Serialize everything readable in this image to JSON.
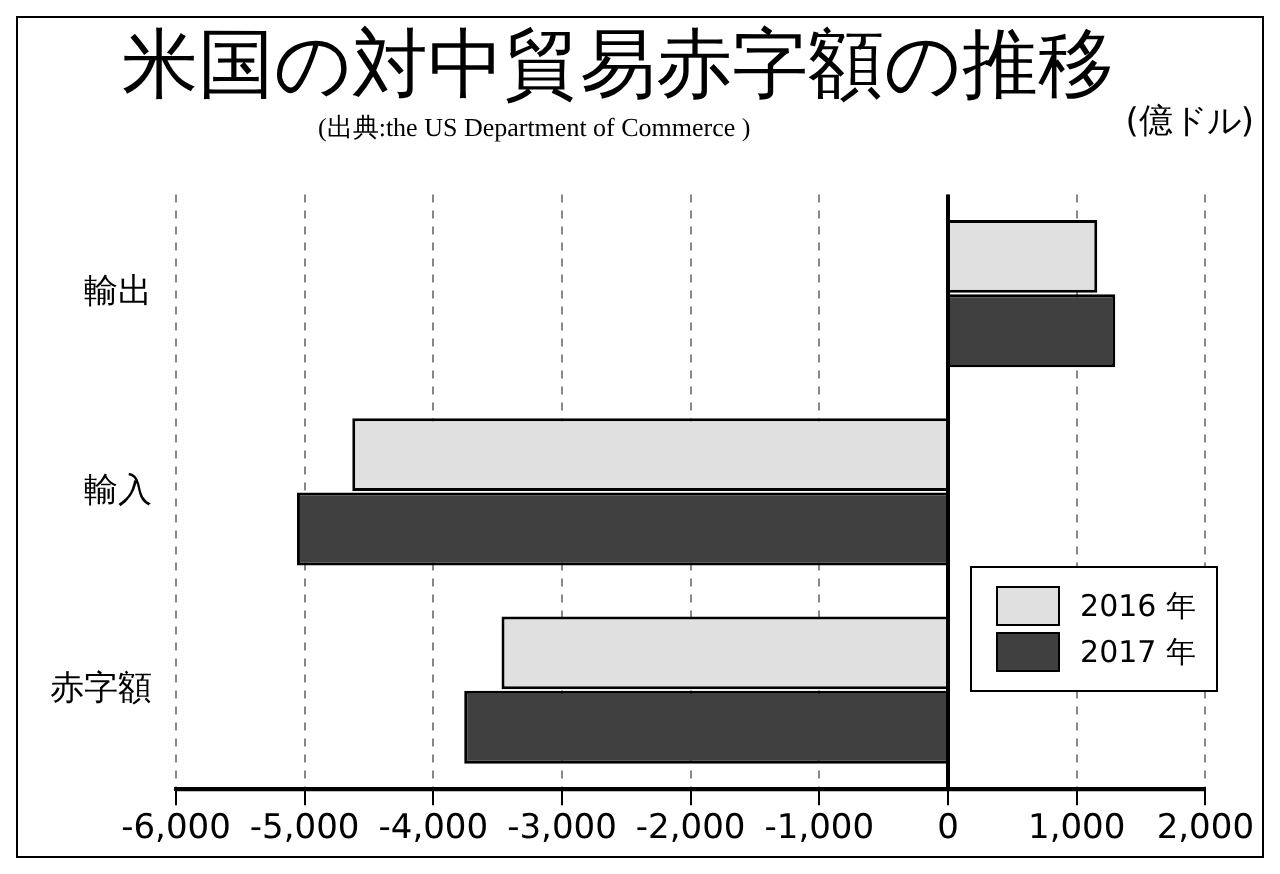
{
  "chart_data": {
    "type": "bar",
    "orientation": "horizontal",
    "title": "米国の対中貿易赤字額の推移",
    "subtitle": "(出典:the US Department of Commerce )",
    "annotations": [
      "(億ドル)"
    ],
    "categories": [
      "輸出",
      "輸入",
      "赤字額"
    ],
    "series": [
      {
        "name": "2016 年",
        "color": "#e0e0e0",
        "values": [
          1160,
          -4630,
          -3470
        ]
      },
      {
        "name": "2017 年",
        "color": "#404040",
        "values": [
          1300,
          -5060,
          -3760
        ]
      }
    ],
    "xlim": [
      -6000,
      2000
    ],
    "xticks": [
      {
        "value": -6000,
        "label": "-6,000"
      },
      {
        "value": -5000,
        "label": "-5,000"
      },
      {
        "value": -4000,
        "label": "-4,000"
      },
      {
        "value": -3000,
        "label": "-3,000"
      },
      {
        "value": -2000,
        "label": "-2,000"
      },
      {
        "value": -1000,
        "label": "-1,000"
      },
      0,
      {
        "value": 1000,
        "label": "1,000"
      },
      {
        "value": 2000,
        "label": "2,000"
      }
    ],
    "grid": "x",
    "legend": "bottom right"
  }
}
